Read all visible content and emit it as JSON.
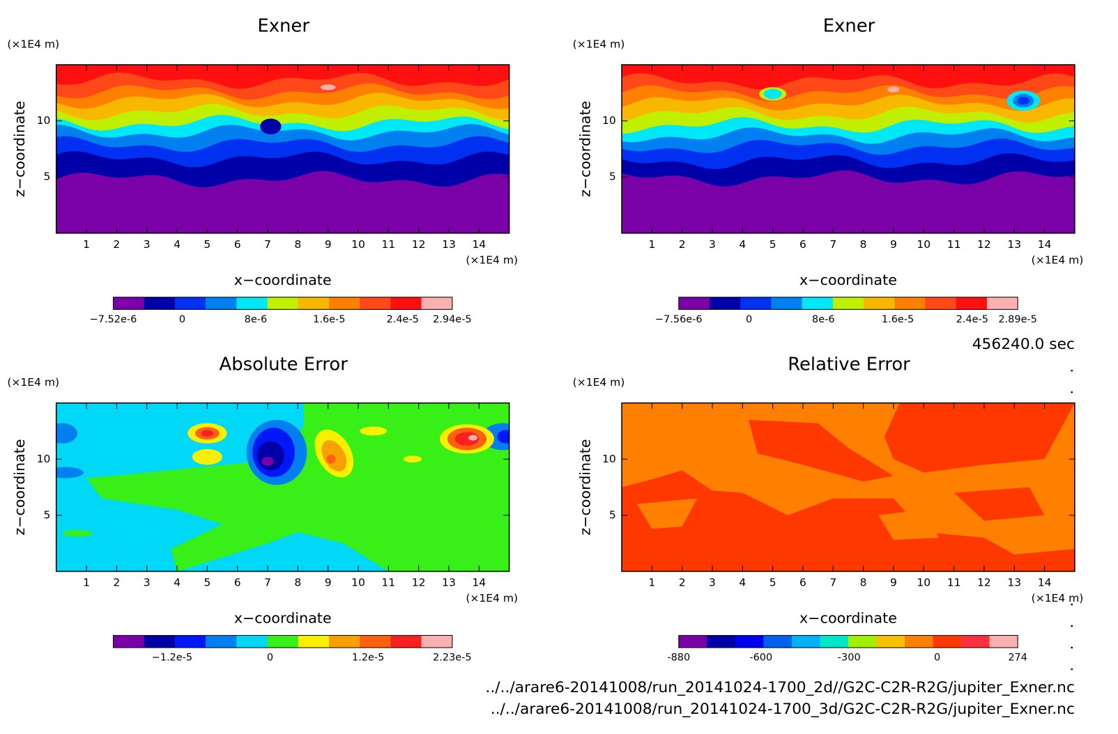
{
  "chart_data": [
    {
      "type": "contour",
      "title": "Exner",
      "x_label": "x−coordinate",
      "y_label": "z−coordinate",
      "x_unit": "(×1E4 m)",
      "y_unit": "(×1E4 m)",
      "xlim": [
        0,
        15
      ],
      "xticks": [
        1,
        2,
        3,
        4,
        5,
        6,
        7,
        8,
        9,
        10,
        11,
        12,
        13,
        14
      ],
      "ylim": [
        0,
        15
      ],
      "yticks": [
        5,
        10
      ],
      "colorbar": {
        "colors": [
          "#7a00a8",
          "#0000a8",
          "#0030f0",
          "#0080f0",
          "#00e8f8",
          "#c0f000",
          "#f8b800",
          "#ff8000",
          "#ff4818",
          "#ff1010",
          "#f8b0b0"
        ],
        "lim": [
          -7.52e-06,
          2.94e-05
        ],
        "ticks": [
          {
            "value": -7.52e-06,
            "label": "−7.52e-6"
          },
          0,
          {
            "value": 8e-06,
            "label": "8e-6"
          },
          {
            "value": 1.6e-05,
            "label": "1.6e-5"
          },
          {
            "value": 2.4e-05,
            "label": "2.4e-5"
          },
          {
            "value": 2.94e-05,
            "label": "2.94e-5"
          }
        ]
      }
    },
    {
      "type": "contour",
      "title": "Exner",
      "x_label": "x−coordinate",
      "y_label": "z−coordinate",
      "x_unit": "(×1E4 m)",
      "y_unit": "(×1E4 m)",
      "xlim": [
        0,
        15
      ],
      "xticks": [
        1,
        2,
        3,
        4,
        5,
        6,
        7,
        8,
        9,
        10,
        11,
        12,
        13,
        14
      ],
      "ylim": [
        0,
        15
      ],
      "yticks": [
        5,
        10
      ],
      "colorbar": {
        "colors": [
          "#7a00a8",
          "#0000a8",
          "#0030f0",
          "#0080f0",
          "#00e8f8",
          "#c0f000",
          "#f8b800",
          "#ff8000",
          "#ff4818",
          "#ff1010",
          "#f8b0b0"
        ],
        "lim": [
          -7.56e-06,
          2.89e-05
        ],
        "ticks": [
          {
            "value": -7.56e-06,
            "label": "−7.56e-6"
          },
          0,
          {
            "value": 8e-06,
            "label": "8e-6"
          },
          {
            "value": 1.6e-05,
            "label": "1.6e-5"
          },
          {
            "value": 2.4e-05,
            "label": "2.4e-5"
          },
          {
            "value": 2.89e-05,
            "label": "2.89e-5"
          }
        ]
      }
    },
    {
      "type": "contour",
      "title": "Absolute Error",
      "x_label": "x−coordinate",
      "y_label": "z−coordinate",
      "x_unit": "(×1E4 m)",
      "y_unit": "(×1E4 m)",
      "xlim": [
        0,
        15
      ],
      "xticks": [
        1,
        2,
        3,
        4,
        5,
        6,
        7,
        8,
        9,
        10,
        11,
        12,
        13,
        14
      ],
      "ylim": [
        0,
        15
      ],
      "yticks": [
        5,
        10
      ],
      "colorbar": {
        "colors": [
          "#7a00a8",
          "#0000a8",
          "#0018f8",
          "#0080f0",
          "#00d8f8",
          "#38f018",
          "#f8f000",
          "#f8a000",
          "#ff6010",
          "#f82020",
          "#f8b0b0"
        ],
        "lim": [
          -1.92e-05,
          2.23e-05
        ],
        "ticks": [
          {
            "value": -1.2e-05,
            "label": "−1.2e-5"
          },
          0,
          {
            "value": 1.2e-05,
            "label": "1.2e-5"
          },
          {
            "value": 2.23e-05,
            "label": "2.23e-5"
          }
        ]
      }
    },
    {
      "type": "contour",
      "title": "Relative Error",
      "x_label": "x−coordinate",
      "y_label": "z−coordinate",
      "x_unit": "(×1E4 m)",
      "y_unit": "(×1E4 m)",
      "xlim": [
        0,
        15
      ],
      "xticks": [
        1,
        2,
        3,
        4,
        5,
        6,
        7,
        8,
        9,
        10,
        11,
        12,
        13,
        14
      ],
      "ylim": [
        0,
        15
      ],
      "yticks": [
        5,
        10
      ],
      "colorbar": {
        "colors": [
          "#7a00a8",
          "#0000a8",
          "#0000f0",
          "#0060f0",
          "#00b0f8",
          "#00e8c8",
          "#a0f000",
          "#f8c000",
          "#ff8000",
          "#ff3800",
          "#f83040",
          "#f8b0b0"
        ],
        "lim": [
          -880,
          274
        ],
        "ticks": [
          -880,
          -600,
          -300,
          0,
          274
        ]
      }
    }
  ],
  "time": "456240.0 sec",
  "files": [
    "../../arare6-20141008/run_20141024-1700_2d//G2C-C2R-R2G/jupiter_Exner.nc",
    "../../arare6-20141008/run_20141024-1700_3d/G2C-C2R-R2G/jupiter_Exner.nc"
  ]
}
